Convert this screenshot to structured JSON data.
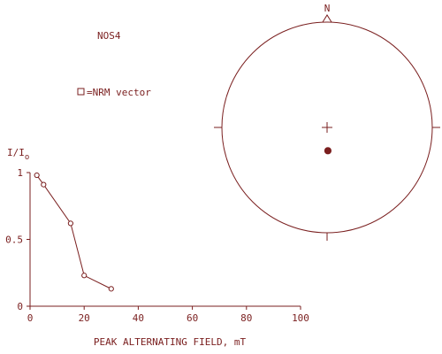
{
  "sample_label": "NOS4",
  "legend": {
    "text": "=NRM vector"
  },
  "colors": {
    "ink": "#7a1f1f",
    "background": "#ffffff"
  },
  "chart_data": [
    {
      "type": "line",
      "title": "",
      "xlabel": "PEAK ALTERNATING FIELD, mT",
      "ylabel": "I/I",
      "ylabel_subscript": "o",
      "xlim": [
        0,
        100
      ],
      "ylim": [
        0,
        1
      ],
      "x_ticks": [
        0,
        20,
        40,
        60,
        80,
        100
      ],
      "y_ticks": [
        0,
        0.5,
        1
      ],
      "x_tick_labels": [
        "0",
        "20",
        "40",
        "60",
        "80",
        "100"
      ],
      "y_tick_labels": [
        "0",
        "0.5",
        "1"
      ],
      "grid": false,
      "marker": "open-circle",
      "series": [
        {
          "x": [
            2.5,
            5,
            15,
            20,
            30
          ],
          "y": [
            0.98,
            0.91,
            0.62,
            0.23,
            0.13
          ]
        }
      ]
    },
    {
      "type": "scatter",
      "subtype": "equal-area stereonet",
      "north_label": "N",
      "points": [
        {
          "declaration_deg": 178,
          "inclination_deg": 72,
          "hemisphere": "lower",
          "marker": "filled"
        }
      ]
    }
  ]
}
